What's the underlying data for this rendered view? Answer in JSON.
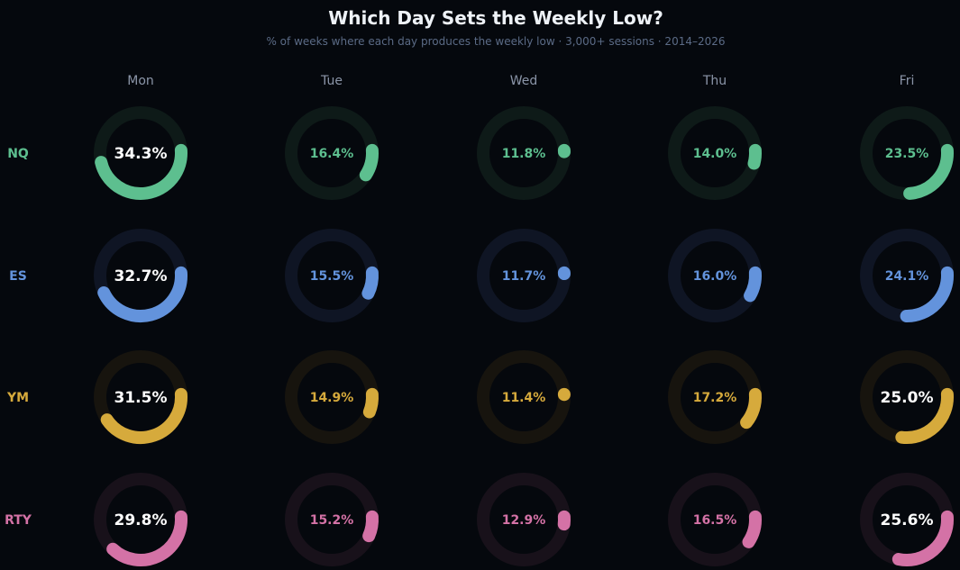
{
  "chart_data": {
    "type": "donut-grid",
    "title": "Which Day Sets the Weekly Low?",
    "subtitle": "% of weeks where each day produces the weekly low · 3,000+ sessions · 2014–2026",
    "columns": [
      "Mon",
      "Tue",
      "Wed",
      "Thu",
      "Fri"
    ],
    "rows": [
      {
        "name": "NQ",
        "color": "#5dbf8f",
        "track": "#0e1a18",
        "values": [
          34.3,
          16.4,
          11.8,
          14.0,
          23.5
        ]
      },
      {
        "name": "ES",
        "color": "#6393dc",
        "track": "#0f1524",
        "values": [
          32.7,
          15.5,
          11.7,
          16.0,
          24.1
        ]
      },
      {
        "name": "YM",
        "color": "#d6aa3c",
        "track": "#17140e",
        "values": [
          31.5,
          14.9,
          11.4,
          17.2,
          25.0
        ]
      },
      {
        "name": "RTY",
        "color": "#d472a6",
        "track": "#18111a",
        "values": [
          29.8,
          15.2,
          12.9,
          16.5,
          25.6
        ]
      }
    ],
    "unit": "%"
  }
}
